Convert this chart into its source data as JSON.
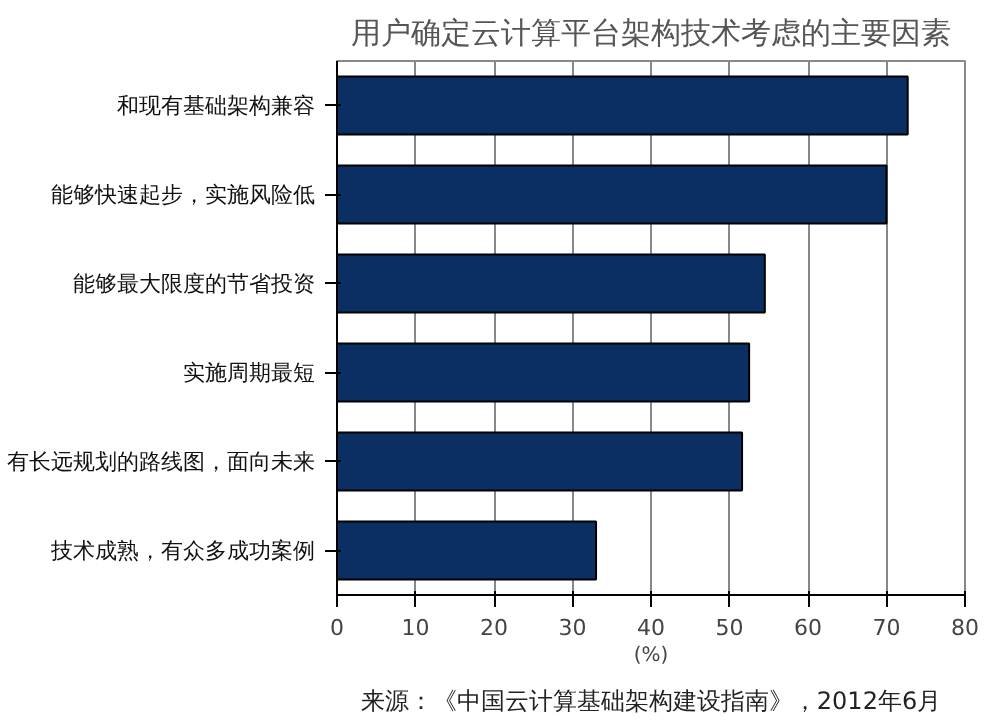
{
  "chart_data": {
    "type": "bar",
    "orientation": "horizontal",
    "title": "用户确定云计算平台架构技术考虑的主要因素",
    "categories": [
      "和现有基础架构兼容",
      "能够快速起步，实施风险低",
      "能够最大限度的节省投资",
      "实施周期最短",
      "有长远规划的路线图，面向未来",
      "技术成熟，有众多成功案例"
    ],
    "values": [
      72.7,
      70,
      54.5,
      52.5,
      51.6,
      33
    ],
    "color": "#0b2f63",
    "xlim": [
      0,
      80
    ],
    "xticks": [
      0,
      10,
      20,
      30,
      40,
      50,
      60,
      70,
      80
    ],
    "xlabel": "(%)",
    "grid": "x",
    "annotations": [
      "来源：《中国云计算基础架构建设指南》，2012年6月"
    ]
  }
}
